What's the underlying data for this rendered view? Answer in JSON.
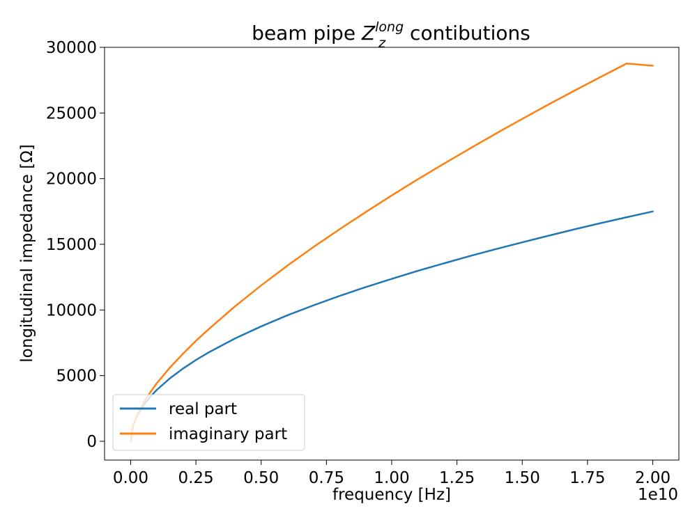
{
  "chart_data": {
    "type": "line",
    "title": {
      "prefix": "beam pipe ",
      "symbol": "Z",
      "superscript": "long",
      "subscript": "z",
      "suffix": " contibutions"
    },
    "xlabel": "frequency [Hz]",
    "ylabel": "longitudinal impedance [Ω]",
    "x_offset_label": "1e10",
    "x_scale": 10000000000.0,
    "xlim": [
      -1000000000.0,
      21000000000.0
    ],
    "ylim": [
      -1430,
      30000
    ],
    "xticks": [
      0,
      2500000000.0,
      5000000000.0,
      7500000000.0,
      10000000000.0,
      12500000000.0,
      15000000000.0,
      17500000000.0,
      20000000000.0
    ],
    "xtick_labels": [
      "0.00",
      "0.25",
      "0.50",
      "0.75",
      "1.00",
      "1.25",
      "1.50",
      "1.75",
      "2.00"
    ],
    "yticks": [
      0,
      5000,
      10000,
      15000,
      20000,
      25000,
      30000
    ],
    "ytick_labels": [
      "0",
      "5000",
      "10000",
      "15000",
      "20000",
      "25000",
      "30000"
    ],
    "grid": false,
    "legend_position": "lower-left",
    "series": [
      {
        "name": "real part",
        "color": "#1f77b4",
        "x": [
          0,
          100000000.0,
          250000000.0,
          500000000.0,
          750000000.0,
          1000000000.0,
          1500000000.0,
          2000000000.0,
          2500000000.0,
          3000000000.0,
          4000000000.0,
          5000000000.0,
          6000000000.0,
          7000000000.0,
          8000000000.0,
          9000000000.0,
          10000000000.0,
          11000000000.0,
          12000000000.0,
          13000000000.0,
          14000000000.0,
          15000000000.0,
          16000000000.0,
          17000000000.0,
          18000000000.0,
          19000000000.0,
          20000000000.0
        ],
        "y": [
          0,
          1240,
          1960,
          2770,
          3390,
          3910,
          4790,
          5530,
          6190,
          6780,
          7830,
          8750,
          9590,
          10350,
          11070,
          11740,
          12370,
          12980,
          13550,
          14110,
          14640,
          15150,
          15650,
          16140,
          16610,
          17060,
          17500
        ]
      },
      {
        "name": "imaginary part",
        "color": "#ff7f0e",
        "x": [
          0,
          100000000.0,
          250000000.0,
          500000000.0,
          750000000.0,
          1000000000.0,
          1500000000.0,
          2000000000.0,
          2500000000.0,
          3000000000.0,
          4000000000.0,
          5000000000.0,
          6000000000.0,
          7000000000.0,
          8000000000.0,
          9000000000.0,
          10000000000.0,
          11000000000.0,
          12000000000.0,
          13000000000.0,
          14000000000.0,
          15000000000.0,
          16000000000.0,
          17000000000.0,
          18000000000.0,
          19000000000.0,
          20000000000.0
        ],
        "y": [
          0,
          1250,
          2010,
          2980,
          3720,
          4420,
          5600,
          6660,
          7650,
          8560,
          10280,
          11870,
          13370,
          14790,
          16140,
          17450,
          18720,
          19950,
          21140,
          22300,
          23440,
          24550,
          25640,
          26700,
          27740,
          28770,
          28600
        ]
      }
    ]
  }
}
